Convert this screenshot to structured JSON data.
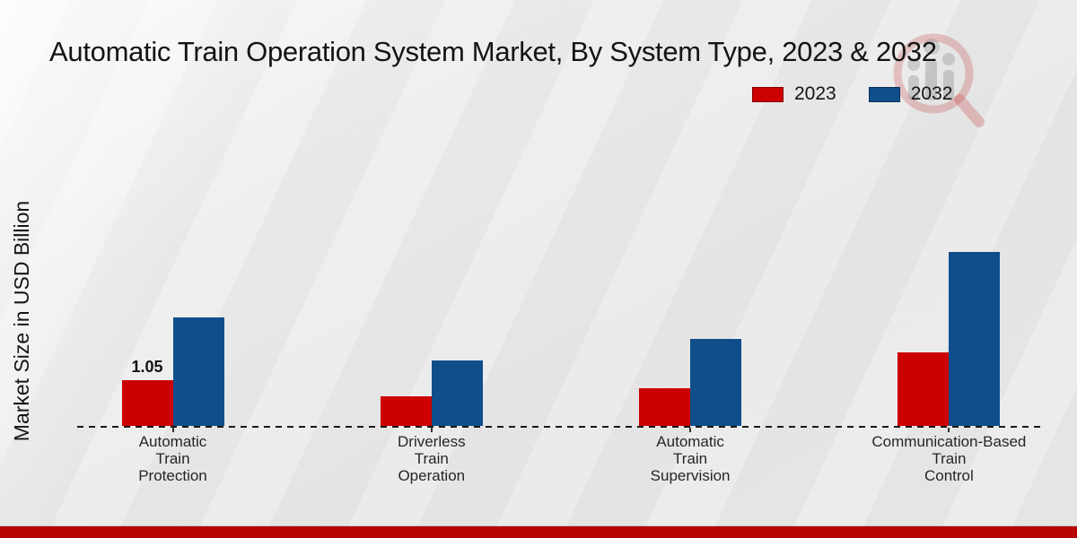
{
  "title": "Automatic Train Operation System Market, By System Type, 2023 & 2032",
  "y_axis_label": "Market Size in USD Billion",
  "legend": [
    {
      "label": "2023",
      "color": "#cc0000"
    },
    {
      "label": "2032",
      "color": "#104e8b"
    }
  ],
  "watermark_icon": "magnifier-bar-chart-logo",
  "footer_bar_color": "#b80303",
  "chart_data": {
    "type": "bar",
    "title": "Automatic Train Operation System Market, By System Type, 2023 & 2032",
    "xlabel": "",
    "ylabel": "Market Size in USD Billion",
    "categories": [
      "Automatic Train Protection",
      "Driverless Train Operation",
      "Automatic Train Supervision",
      "Communication-Based Train Control"
    ],
    "category_lines": [
      [
        "Automatic",
        "Train",
        "Protection"
      ],
      [
        "Driverless",
        "Train",
        "Operation"
      ],
      [
        "Automatic",
        "Train",
        "Supervision"
      ],
      [
        "Communication-Based",
        "Train",
        "Control"
      ]
    ],
    "series": [
      {
        "name": "2023",
        "color": "#cc0000",
        "values": [
          1.05,
          0.68,
          0.87,
          1.7
        ]
      },
      {
        "name": "2032",
        "color": "#104e8b",
        "values": [
          2.5,
          1.5,
          2.0,
          4.0
        ]
      }
    ],
    "value_labels": [
      {
        "series": "2023",
        "category_index": 0,
        "text": "1.05"
      }
    ],
    "ylim": [
      0,
      4.2
    ],
    "grid": false,
    "baseline_style": "dashed",
    "legend_position": "top-right"
  }
}
